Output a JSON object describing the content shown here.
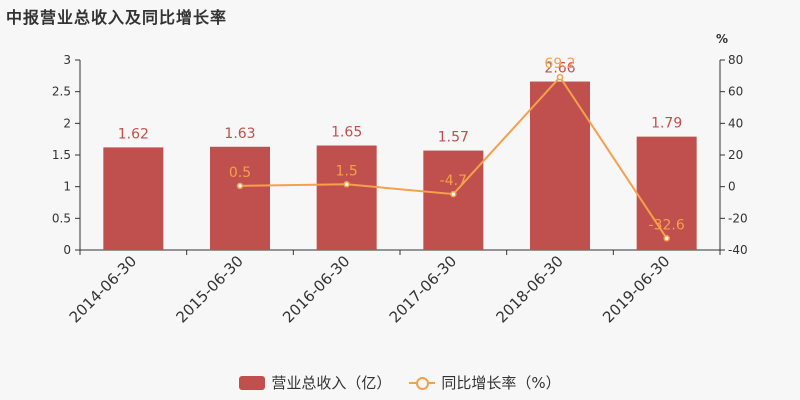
{
  "chart_data": {
    "type": "bar",
    "title": "中报营业总收入及同比增长率",
    "right_axis_unit": "%",
    "categories": [
      "2014-06-30",
      "2015-06-30",
      "2016-06-30",
      "2017-06-30",
      "2018-06-30",
      "2019-06-30"
    ],
    "series": [
      {
        "name": "营业总收入（亿）",
        "type": "bar",
        "axis": "left",
        "color": "#c0504d",
        "values": [
          1.62,
          1.63,
          1.65,
          1.57,
          2.66,
          1.79
        ],
        "labels": [
          "1.62",
          "1.63",
          "1.65",
          "1.57",
          "2.66",
          "1.79"
        ]
      },
      {
        "name": "同比增长率（%）",
        "type": "line",
        "axis": "right",
        "color": "#f5a04a",
        "values": [
          null,
          0.5,
          1.5,
          -4.7,
          69.2,
          -32.6
        ],
        "labels": [
          "",
          "0.5",
          "1.5",
          "-4.7",
          "69.2",
          "-32.6"
        ]
      }
    ],
    "left_axis": {
      "ylim": [
        0,
        3
      ],
      "ticks": [
        "0",
        "0.5",
        "1",
        "1.5",
        "2",
        "2.5",
        "3"
      ]
    },
    "right_axis": {
      "ylim": [
        -40,
        80
      ],
      "ticks": [
        "-40",
        "-20",
        "0",
        "20",
        "40",
        "60",
        "80"
      ]
    },
    "legend_position": "bottom-center",
    "grid": false
  }
}
